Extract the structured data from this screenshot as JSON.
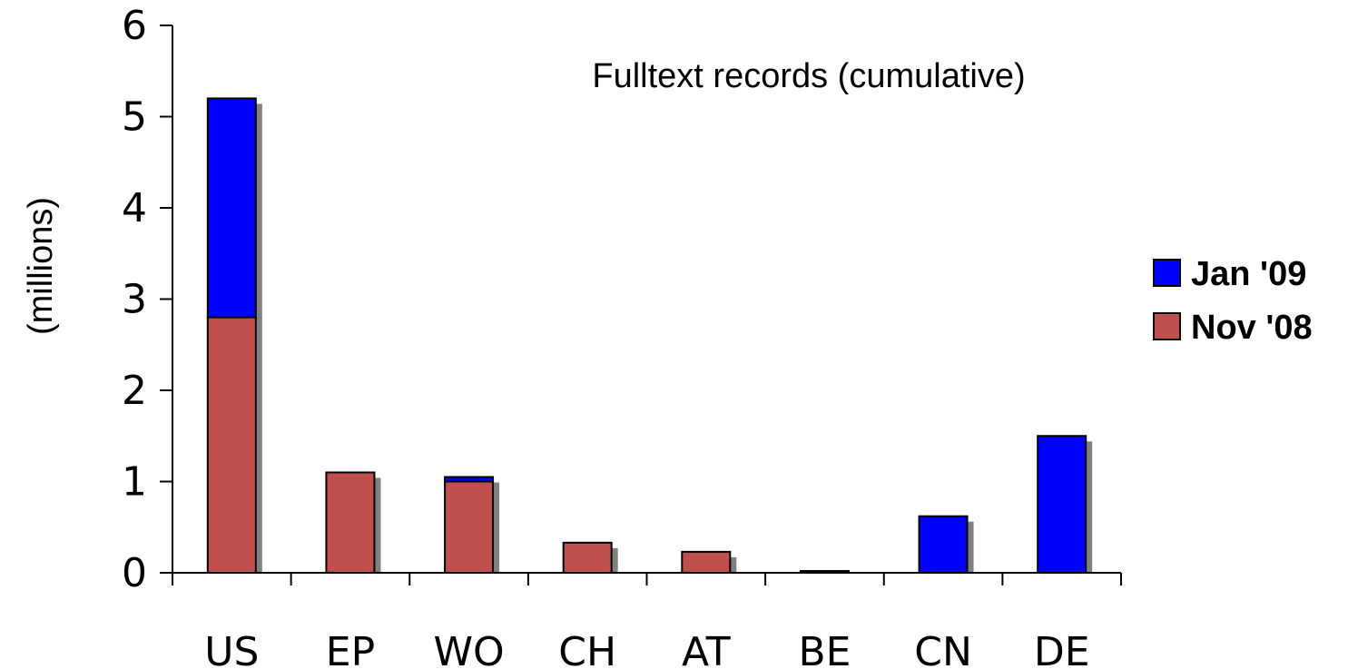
{
  "chart_data": {
    "type": "bar",
    "stacked": true,
    "categories": [
      "US",
      "EP",
      "WO",
      "CH",
      "AT",
      "BE",
      "CN",
      "DE"
    ],
    "series": [
      {
        "name": "Nov '08",
        "color": "#c0504d",
        "values": [
          2.8,
          1.1,
          1.0,
          0.33,
          0.23,
          0.0,
          0.0,
          0.0
        ]
      },
      {
        "name": "Jan '09",
        "color": "#0000ff",
        "values": [
          2.4,
          0.0,
          0.05,
          0.0,
          0.0,
          0.02,
          0.62,
          1.5
        ]
      }
    ],
    "title": "",
    "annotation": "Fulltext records (cumulative)",
    "xlabel": "",
    "ylabel": "(millions)",
    "ylim": [
      0,
      6
    ],
    "yticks": [
      0,
      1,
      2,
      3,
      4,
      5,
      6
    ],
    "grid": false,
    "legend_position": "right",
    "legend_order": [
      "Jan '09",
      "Nov '08"
    ]
  }
}
